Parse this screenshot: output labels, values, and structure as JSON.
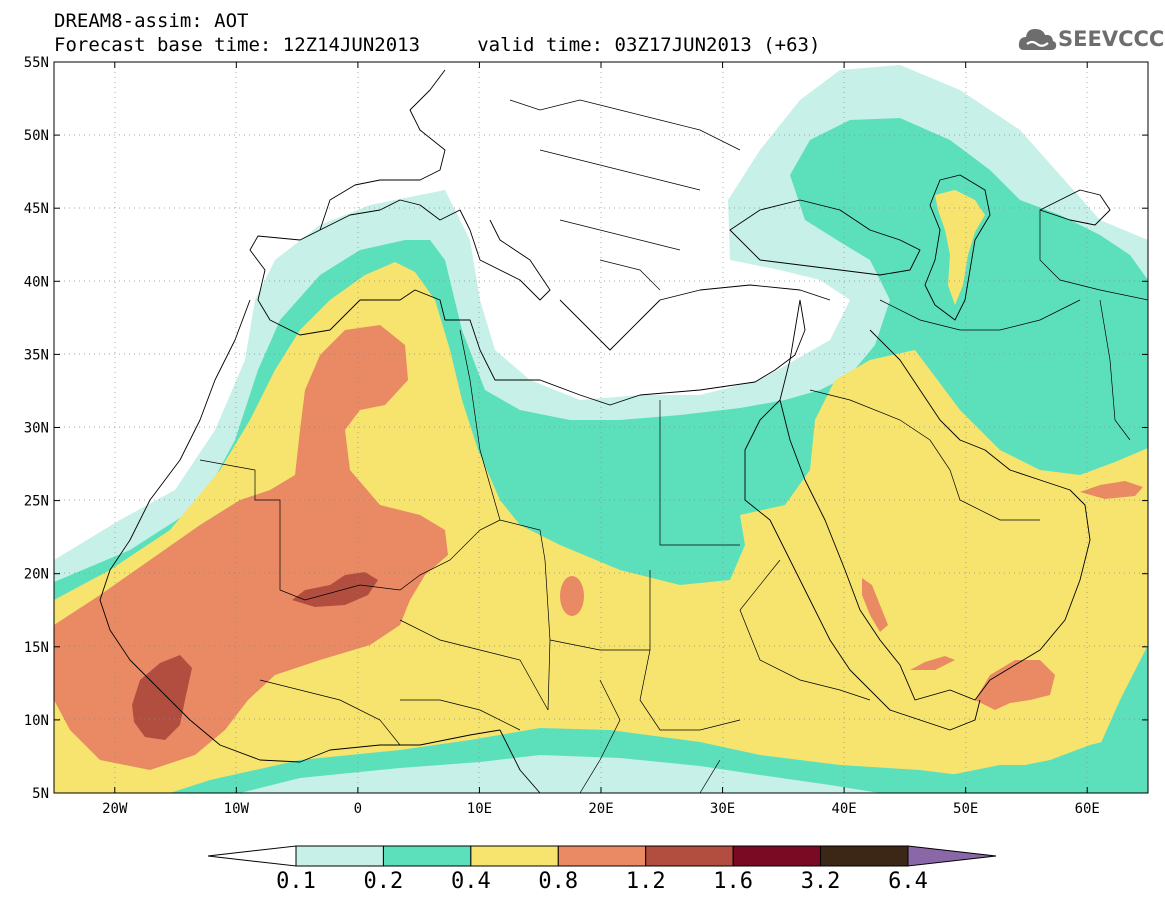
{
  "header": {
    "title_line1": "DREAM8-assim: AOT",
    "title_line2": "Forecast base time: 12Z14JUN2013     valid time: 03Z17JUN2013 (+63)"
  },
  "logo": {
    "text": "SEEVCCC",
    "icon": "cloud-icon"
  },
  "map": {
    "lon_range": [
      -25,
      65
    ],
    "lat_range": [
      5,
      55
    ],
    "lat_labels": [
      "55N",
      "50N",
      "45N",
      "40N",
      "35N",
      "30N",
      "25N",
      "20N",
      "15N",
      "10N",
      "5N"
    ],
    "lon_labels": [
      "20W",
      "10W",
      "0",
      "10E",
      "20E",
      "30E",
      "40E",
      "50E",
      "60E"
    ],
    "gridlines": "dotted",
    "boundaries": "countries and coastlines"
  },
  "colorbar": {
    "labels": [
      "0.1",
      "0.2",
      "0.4",
      "0.8",
      "1.2",
      "1.6",
      "3.2",
      "6.4"
    ],
    "colors": [
      "#ffffff",
      "#c7f0e8",
      "#5ce0bc",
      "#f6e46f",
      "#e98a64",
      "#b24e40",
      "#7a0a24",
      "#3c2616",
      "#8a68a8"
    ]
  }
}
